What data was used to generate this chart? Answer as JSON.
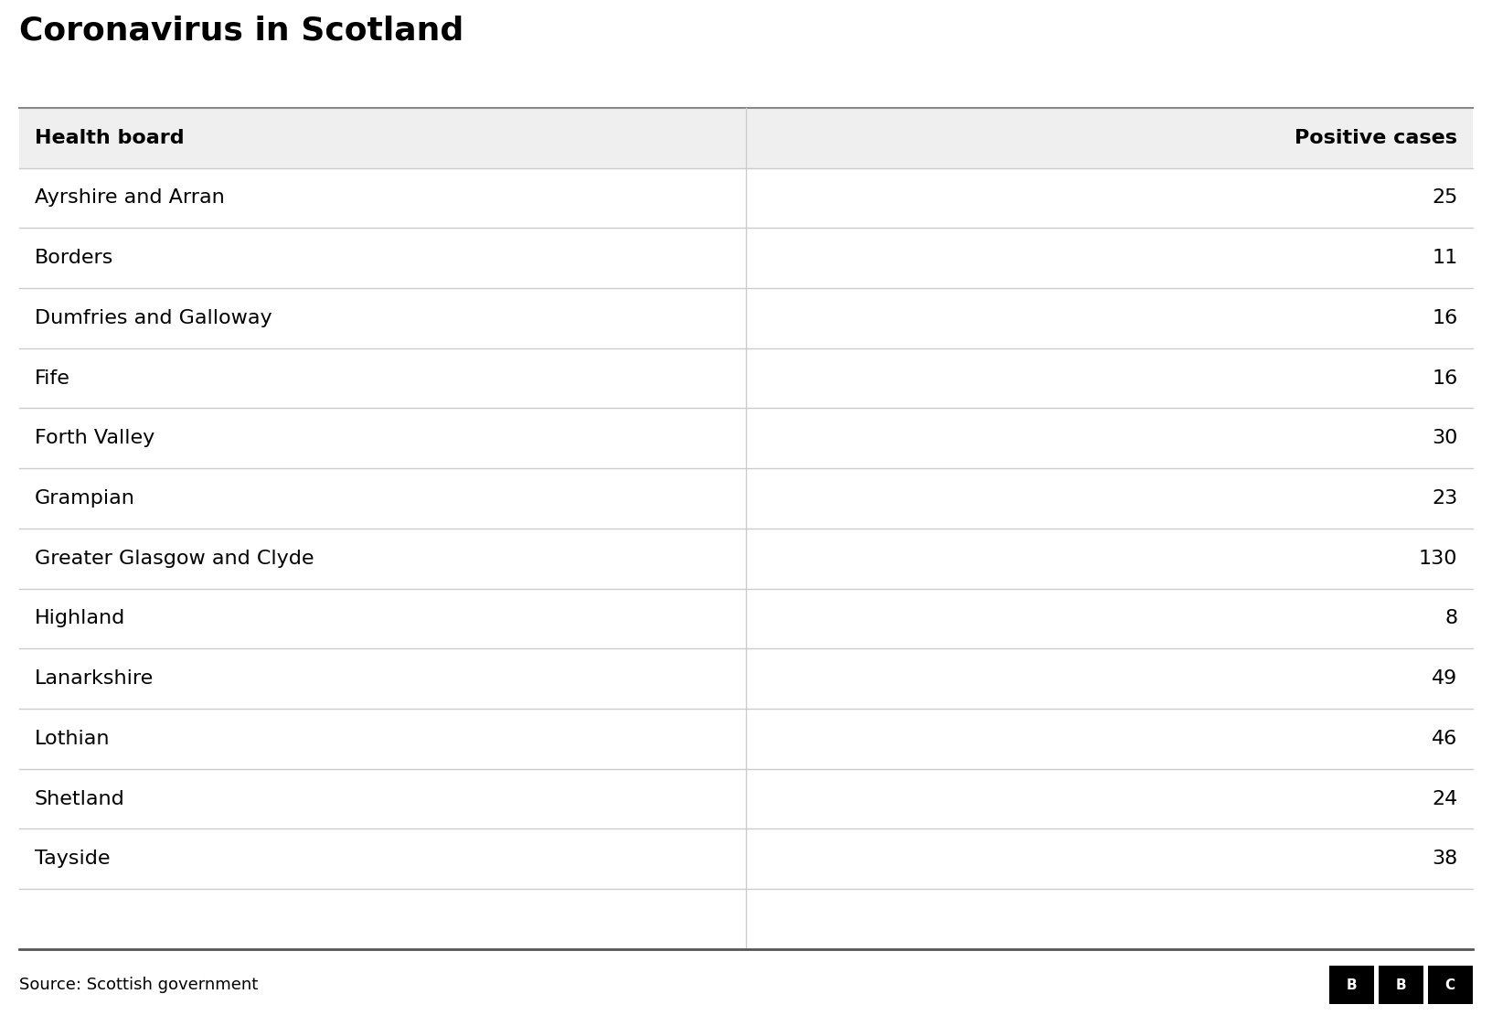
{
  "title": "Coronavirus in Scotland",
  "col1_header": "Health board",
  "col2_header": "Positive cases",
  "rows": [
    [
      "Ayrshire and Arran",
      "25"
    ],
    [
      "Borders",
      "11"
    ],
    [
      "Dumfries and Galloway",
      "16"
    ],
    [
      "Fife",
      "16"
    ],
    [
      "Forth Valley",
      "30"
    ],
    [
      "Grampian",
      "23"
    ],
    [
      "Greater Glasgow and Clyde",
      "130"
    ],
    [
      "Highland",
      "8"
    ],
    [
      "Lanarkshire",
      "49"
    ],
    [
      "Lothian",
      "46"
    ],
    [
      "Shetland",
      "24"
    ],
    [
      "Tayside",
      "38"
    ],
    [
      "",
      ""
    ]
  ],
  "source_text": "Source: Scottish government",
  "background_color": "#ffffff",
  "header_bg_color": "#efefef",
  "line_color": "#cccccc",
  "title_color": "#000000",
  "header_text_color": "#000000",
  "row_text_color": "#000000",
  "source_text_color": "#000000",
  "title_fontsize": 26,
  "header_fontsize": 16,
  "row_fontsize": 16,
  "source_fontsize": 13,
  "col_split": 0.5,
  "fig_width": 16.32,
  "fig_height": 11.22
}
